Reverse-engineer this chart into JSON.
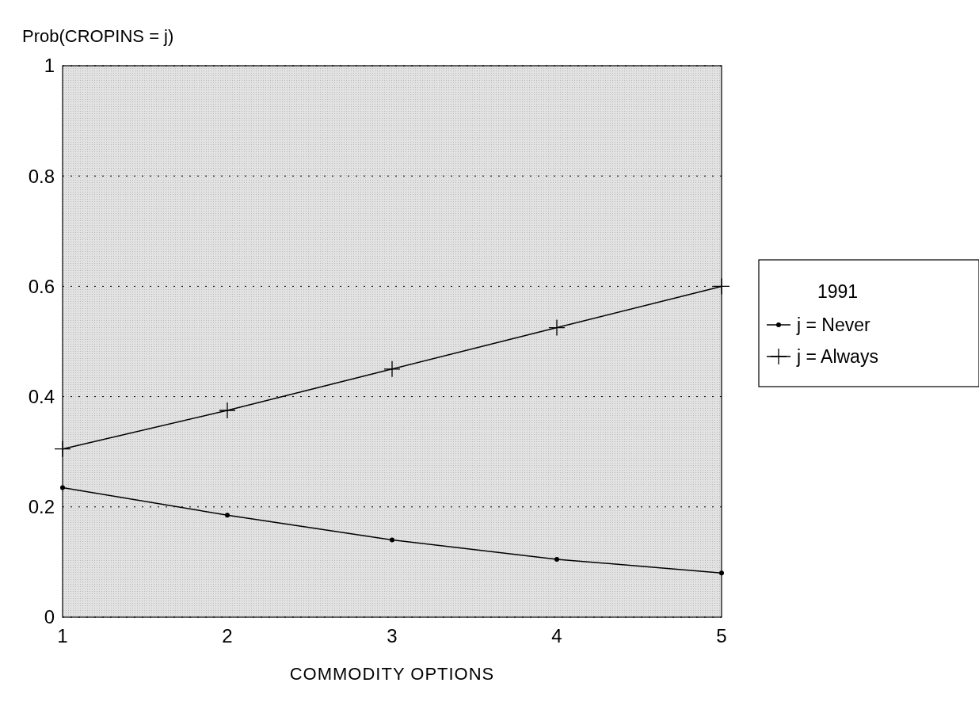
{
  "chart_data": {
    "type": "line",
    "ylabel": "Prob(CROPINS = j)",
    "xlabel": "COMMODITY OPTIONS",
    "legend_title": "1991",
    "x": [
      1,
      2,
      3,
      4,
      5
    ],
    "xlim": [
      1,
      5
    ],
    "xticks": [
      1,
      2,
      3,
      4,
      5
    ],
    "ylim": [
      0,
      1
    ],
    "yticks": [
      0,
      0.2,
      0.4,
      0.6,
      0.8,
      1
    ],
    "grid": "y",
    "legend": "right",
    "line_style": "solid",
    "series": [
      {
        "name": "j = Never",
        "color": "#000000",
        "marker": "circle",
        "values": [
          0.235,
          0.185,
          0.14,
          0.105,
          0.08
        ]
      },
      {
        "name": "j = Always",
        "color": "#000000",
        "marker": "cross",
        "values": [
          0.305,
          0.375,
          0.45,
          0.525,
          0.6
        ]
      }
    ]
  }
}
